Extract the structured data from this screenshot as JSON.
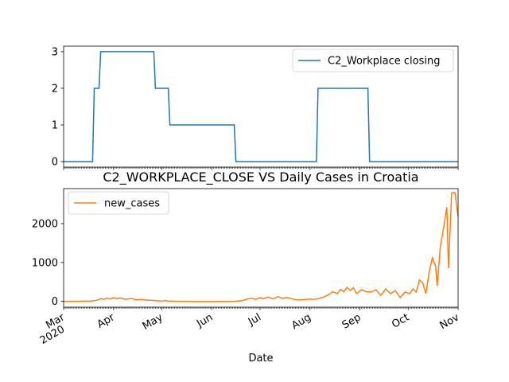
{
  "chart_data": [
    {
      "type": "line",
      "title": "",
      "xlabel": "",
      "ylabel": "",
      "ylim": [
        -0.15,
        3.15
      ],
      "yticks": [
        0,
        1,
        2,
        3
      ],
      "xlim": [
        "2020-03-01",
        "2020-11-01"
      ],
      "grid": false,
      "legend_location": "upper right",
      "series": [
        {
          "name": "C2_Workplace closing",
          "color": "#1f77b4",
          "step_points": [
            [
              "2020-03-01",
              0
            ],
            [
              "2020-03-19",
              0
            ],
            [
              "2020-03-20",
              2
            ],
            [
              "2020-03-23",
              2
            ],
            [
              "2020-03-24",
              3
            ],
            [
              "2020-04-26",
              3
            ],
            [
              "2020-04-27",
              2
            ],
            [
              "2020-05-05",
              2
            ],
            [
              "2020-05-06",
              1
            ],
            [
              "2020-06-15",
              1
            ],
            [
              "2020-06-16",
              0
            ],
            [
              "2020-08-05",
              0
            ],
            [
              "2020-08-06",
              2
            ],
            [
              "2020-09-06",
              2
            ],
            [
              "2020-09-07",
              0
            ],
            [
              "2020-11-01",
              0
            ]
          ]
        }
      ]
    },
    {
      "type": "line",
      "title": "C2_WORKPLACE_CLOSE VS Daily Cases in Croatia",
      "xlabel": "Date",
      "ylabel": "",
      "ylim": [
        -150,
        2900
      ],
      "yticks": [
        0,
        1000,
        2000
      ],
      "xlim": [
        "2020-03-01",
        "2020-11-01"
      ],
      "grid": false,
      "legend_location": "upper left",
      "x_tick_labels": [
        {
          "date": "2020-03-01",
          "label": "Mar",
          "sublabel": "2020"
        },
        {
          "date": "2020-04-01",
          "label": "Apr"
        },
        {
          "date": "2020-05-01",
          "label": "May"
        },
        {
          "date": "2020-06-01",
          "label": "Jun"
        },
        {
          "date": "2020-07-01",
          "label": "Jul"
        },
        {
          "date": "2020-08-01",
          "label": "Aug"
        },
        {
          "date": "2020-09-01",
          "label": "Sep"
        },
        {
          "date": "2020-10-01",
          "label": "Oct"
        },
        {
          "date": "2020-11-01",
          "label": "Nov"
        }
      ],
      "series": [
        {
          "name": "new_cases",
          "color": "#ff7f0e",
          "points": [
            [
              "2020-03-01",
              0
            ],
            [
              "2020-03-10",
              3
            ],
            [
              "2020-03-18",
              10
            ],
            [
              "2020-03-22",
              30
            ],
            [
              "2020-03-24",
              70
            ],
            [
              "2020-03-26",
              55
            ],
            [
              "2020-03-28",
              85
            ],
            [
              "2020-03-30",
              60
            ],
            [
              "2020-04-01",
              95
            ],
            [
              "2020-04-03",
              70
            ],
            [
              "2020-04-05",
              90
            ],
            [
              "2020-04-08",
              55
            ],
            [
              "2020-04-10",
              60
            ],
            [
              "2020-04-12",
              75
            ],
            [
              "2020-04-15",
              45
            ],
            [
              "2020-04-18",
              50
            ],
            [
              "2020-04-21",
              35
            ],
            [
              "2020-04-24",
              30
            ],
            [
              "2020-04-28",
              15
            ],
            [
              "2020-05-01",
              8
            ],
            [
              "2020-05-03",
              25
            ],
            [
              "2020-05-05",
              10
            ],
            [
              "2020-05-10",
              3
            ],
            [
              "2020-05-20",
              0
            ],
            [
              "2020-06-01",
              0
            ],
            [
              "2020-06-15",
              2
            ],
            [
              "2020-06-20",
              20
            ],
            [
              "2020-06-23",
              60
            ],
            [
              "2020-06-26",
              80
            ],
            [
              "2020-06-28",
              50
            ],
            [
              "2020-07-01",
              95
            ],
            [
              "2020-07-03",
              70
            ],
            [
              "2020-07-06",
              110
            ],
            [
              "2020-07-09",
              65
            ],
            [
              "2020-07-12",
              120
            ],
            [
              "2020-07-15",
              80
            ],
            [
              "2020-07-18",
              100
            ],
            [
              "2020-07-21",
              60
            ],
            [
              "2020-07-25",
              35
            ],
            [
              "2020-07-28",
              45
            ],
            [
              "2020-08-01",
              60
            ],
            [
              "2020-08-03",
              50
            ],
            [
              "2020-08-06",
              70
            ],
            [
              "2020-08-10",
              120
            ],
            [
              "2020-08-13",
              180
            ],
            [
              "2020-08-15",
              250
            ],
            [
              "2020-08-18",
              200
            ],
            [
              "2020-08-20",
              310
            ],
            [
              "2020-08-22",
              250
            ],
            [
              "2020-08-24",
              360
            ],
            [
              "2020-08-26",
              280
            ],
            [
              "2020-08-28",
              350
            ],
            [
              "2020-08-30",
              200
            ],
            [
              "2020-09-02",
              300
            ],
            [
              "2020-09-05",
              250
            ],
            [
              "2020-09-08",
              240
            ],
            [
              "2020-09-11",
              300
            ],
            [
              "2020-09-14",
              150
            ],
            [
              "2020-09-17",
              320
            ],
            [
              "2020-09-20",
              200
            ],
            [
              "2020-09-23",
              280
            ],
            [
              "2020-09-26",
              100
            ],
            [
              "2020-09-29",
              240
            ],
            [
              "2020-10-02",
              200
            ],
            [
              "2020-10-04",
              320
            ],
            [
              "2020-10-06",
              240
            ],
            [
              "2020-10-08",
              550
            ],
            [
              "2020-10-10",
              480
            ],
            [
              "2020-10-12",
              200
            ],
            [
              "2020-10-14",
              750
            ],
            [
              "2020-10-16",
              1120
            ],
            [
              "2020-10-18",
              900
            ],
            [
              "2020-10-19",
              400
            ],
            [
              "2020-10-21",
              1420
            ],
            [
              "2020-10-23",
              1900
            ],
            [
              "2020-10-25",
              2420
            ],
            [
              "2020-10-26",
              850
            ],
            [
              "2020-10-28",
              2790
            ],
            [
              "2020-10-30",
              2800
            ],
            [
              "2020-11-01",
              2180
            ]
          ]
        }
      ]
    }
  ]
}
